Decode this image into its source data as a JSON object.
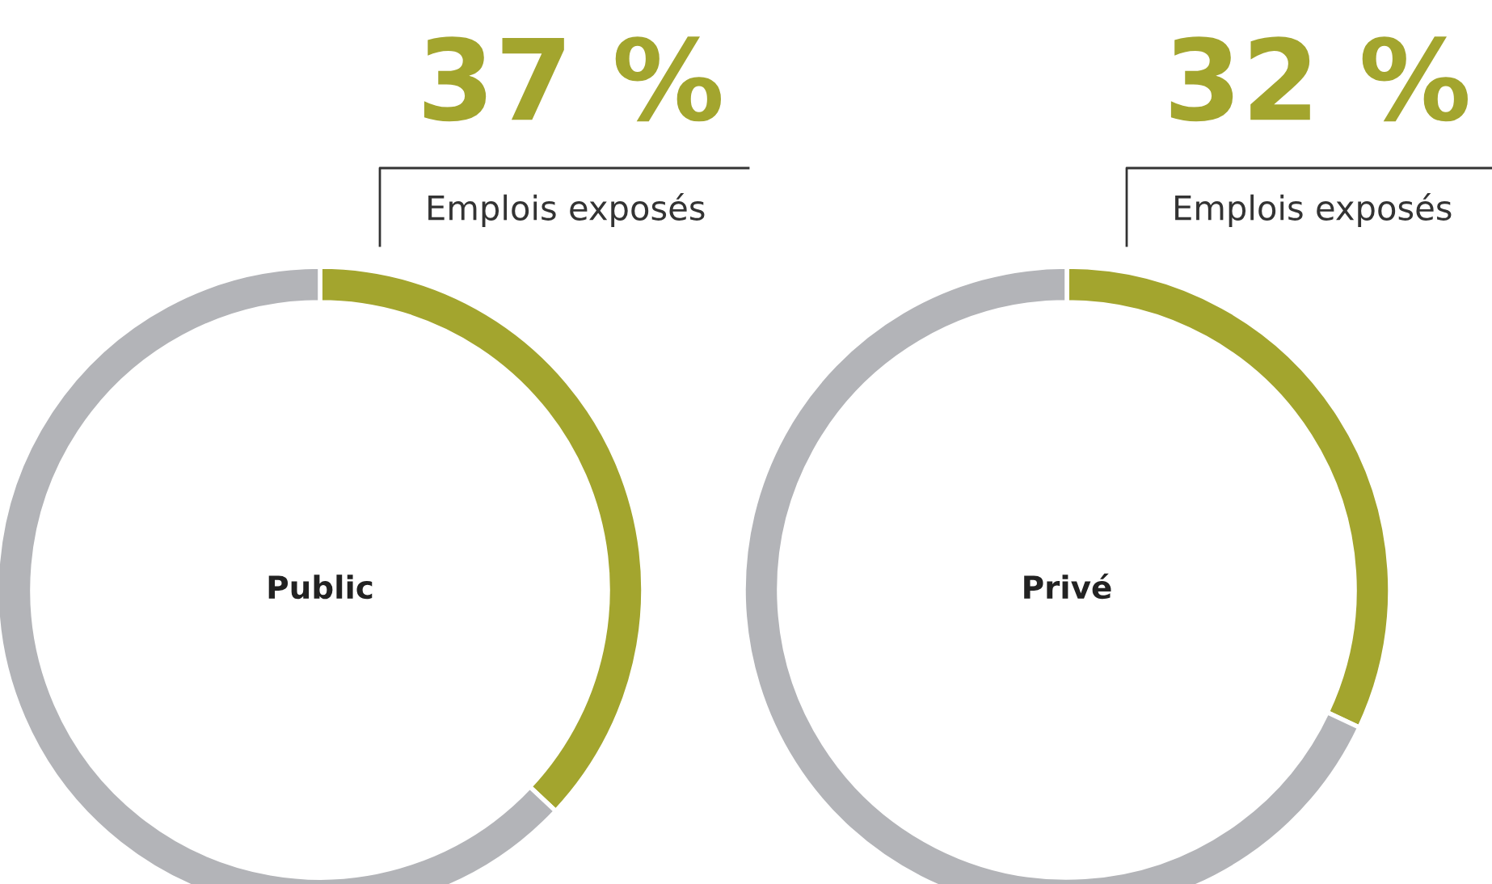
{
  "chart_data": [
    {
      "type": "donut",
      "title": "Public",
      "categories": [
        "Emplois exposés",
        null
      ],
      "values": [
        37,
        63
      ],
      "colors": [
        "#a3a52e",
        "#b3b4b8"
      ],
      "value_labels": [
        "37 %",
        null
      ]
    },
    {
      "type": "donut",
      "title": "Privé",
      "categories": [
        "Emplois exposés",
        null
      ],
      "values": [
        32,
        68
      ],
      "colors": [
        "#a3a52e",
        "#b3b4b8"
      ],
      "value_labels": [
        "32 %",
        null
      ]
    }
  ]
}
